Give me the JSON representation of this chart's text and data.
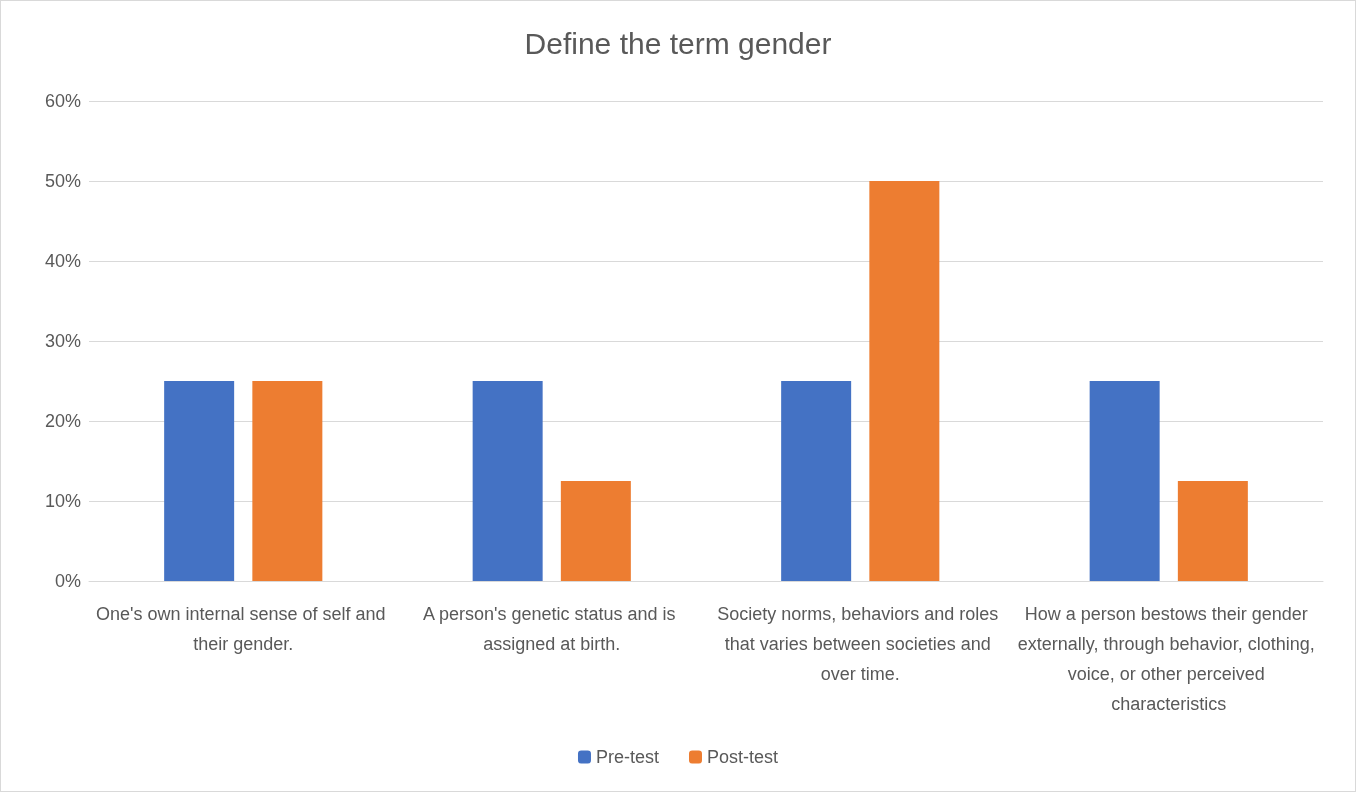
{
  "chart_data": {
    "type": "bar",
    "title": "Define the term gender",
    "categories": [
      "One's own internal sense of self and their gender.",
      "A person's genetic status and is assigned at birth.",
      "Society norms, behaviors and roles that varies between societies and over time.",
      "How a person bestows their gender externally, through behavior, clothing, voice, or other perceived characteristics"
    ],
    "series": [
      {
        "name": "Pre-test",
        "color": "#4472c4",
        "values": [
          25,
          25,
          25,
          25
        ]
      },
      {
        "name": "Post-test",
        "color": "#ed7d31",
        "values": [
          25,
          12.5,
          50,
          12.5
        ]
      }
    ],
    "ylim": [
      0,
      60
    ],
    "yticks": [
      {
        "value": 0,
        "label": "0%"
      },
      {
        "value": 10,
        "label": "10%"
      },
      {
        "value": 20,
        "label": "20%"
      },
      {
        "value": 30,
        "label": "30%"
      },
      {
        "value": 40,
        "label": "40%"
      },
      {
        "value": 50,
        "label": "50%"
      },
      {
        "value": 60,
        "label": "60%"
      }
    ],
    "grid": "y",
    "legend": "bottom"
  }
}
